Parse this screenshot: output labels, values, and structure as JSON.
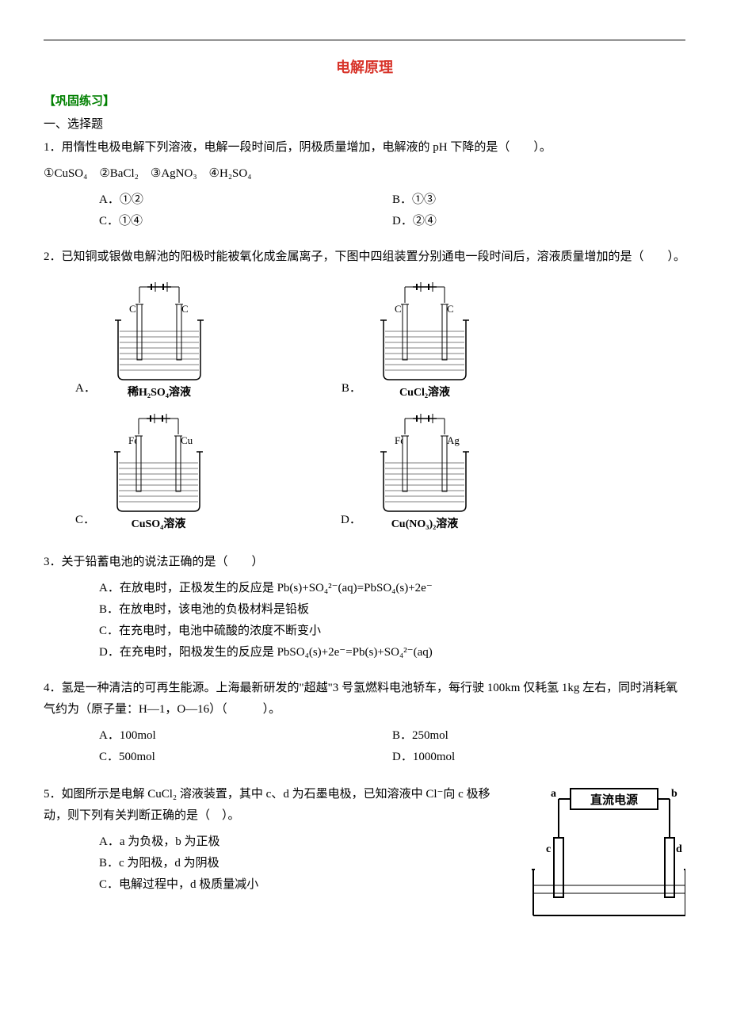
{
  "title": "电解原理",
  "practice_header": "【巩固练习】",
  "section1": "一、选择题",
  "q1": {
    "stem_pre": "1．用惰性电极电解下列溶液，电解一段时间后，阴极质量增加，电解液的 pH 下降的是（　　）。",
    "formulas": "①CuSO₄　②BaCl₂　③AgNO₃　④H₂SO₄",
    "A": "A．①②",
    "B": "B．①③",
    "C": "C．①④",
    "D": "D．②④"
  },
  "q2": {
    "stem": "2．已知铜或银做电解池的阳极时能被氧化成金属离子，下图中四组装置分别通电一段时间后，溶液质量增加的是（　　）。",
    "A_prefix": "A．",
    "A_caption": "稀H₂SO₄溶液",
    "B_prefix": "B．",
    "B_caption": "CuCl₂溶液",
    "C_prefix": "C．",
    "C_caption": "CuSO₄溶液",
    "D_prefix": "D．",
    "D_caption": "Cu(NO₃)₂溶液",
    "elec_A_L": "C",
    "elec_A_R": "C",
    "elec_B_L": "C",
    "elec_B_R": "C",
    "elec_C_L": "Fe",
    "elec_C_R": "Cu",
    "elec_D_L": "Fe",
    "elec_D_R": "Ag"
  },
  "q3": {
    "stem": "3．关于铅蓄电池的说法正确的是（　　）",
    "A": "A．在放电时，正极发生的反应是 Pb(s)+SO₄²⁻(aq)=PbSO₄(s)+2e⁻",
    "B": "B．在放电时，该电池的负极材料是铅板",
    "C": "C．在充电时，电池中硫酸的浓度不断变小",
    "D": "D．在充电时，阳极发生的反应是 PbSO₄(s)+2e⁻=Pb(s)+SO₄²⁻(aq)"
  },
  "q4": {
    "stem": "4．氢是一种清洁的可再生能源。上海最新研发的\"超越\"3 号氢燃料电池轿车，每行驶 100km 仅耗氢 1kg 左右，同时消耗氧气约为（原子量：H—1，O—16）（　　　）。",
    "A": "A．100mol",
    "B": "B．250mol",
    "C": "C．500mol",
    "D": "D．1000mol"
  },
  "q5": {
    "stem": "5．如图所示是电解 CuCl₂ 溶液装置，其中 c、d 为石墨电极，已知溶液中 Cl⁻向 c 极移动，则下列有关判断正确的是（　）。",
    "A": "A．a 为负极，b 为正极",
    "B": "B．c 为阳极，d 为阴极",
    "C": "C．电解过程中，d 极质量减小",
    "box_label": "直流电源",
    "t_a": "a",
    "t_b": "b",
    "t_c": "c",
    "t_d": "d"
  },
  "beaker_style": {
    "stroke": "#000",
    "fill": "#fff",
    "liquid_line": "#000"
  }
}
